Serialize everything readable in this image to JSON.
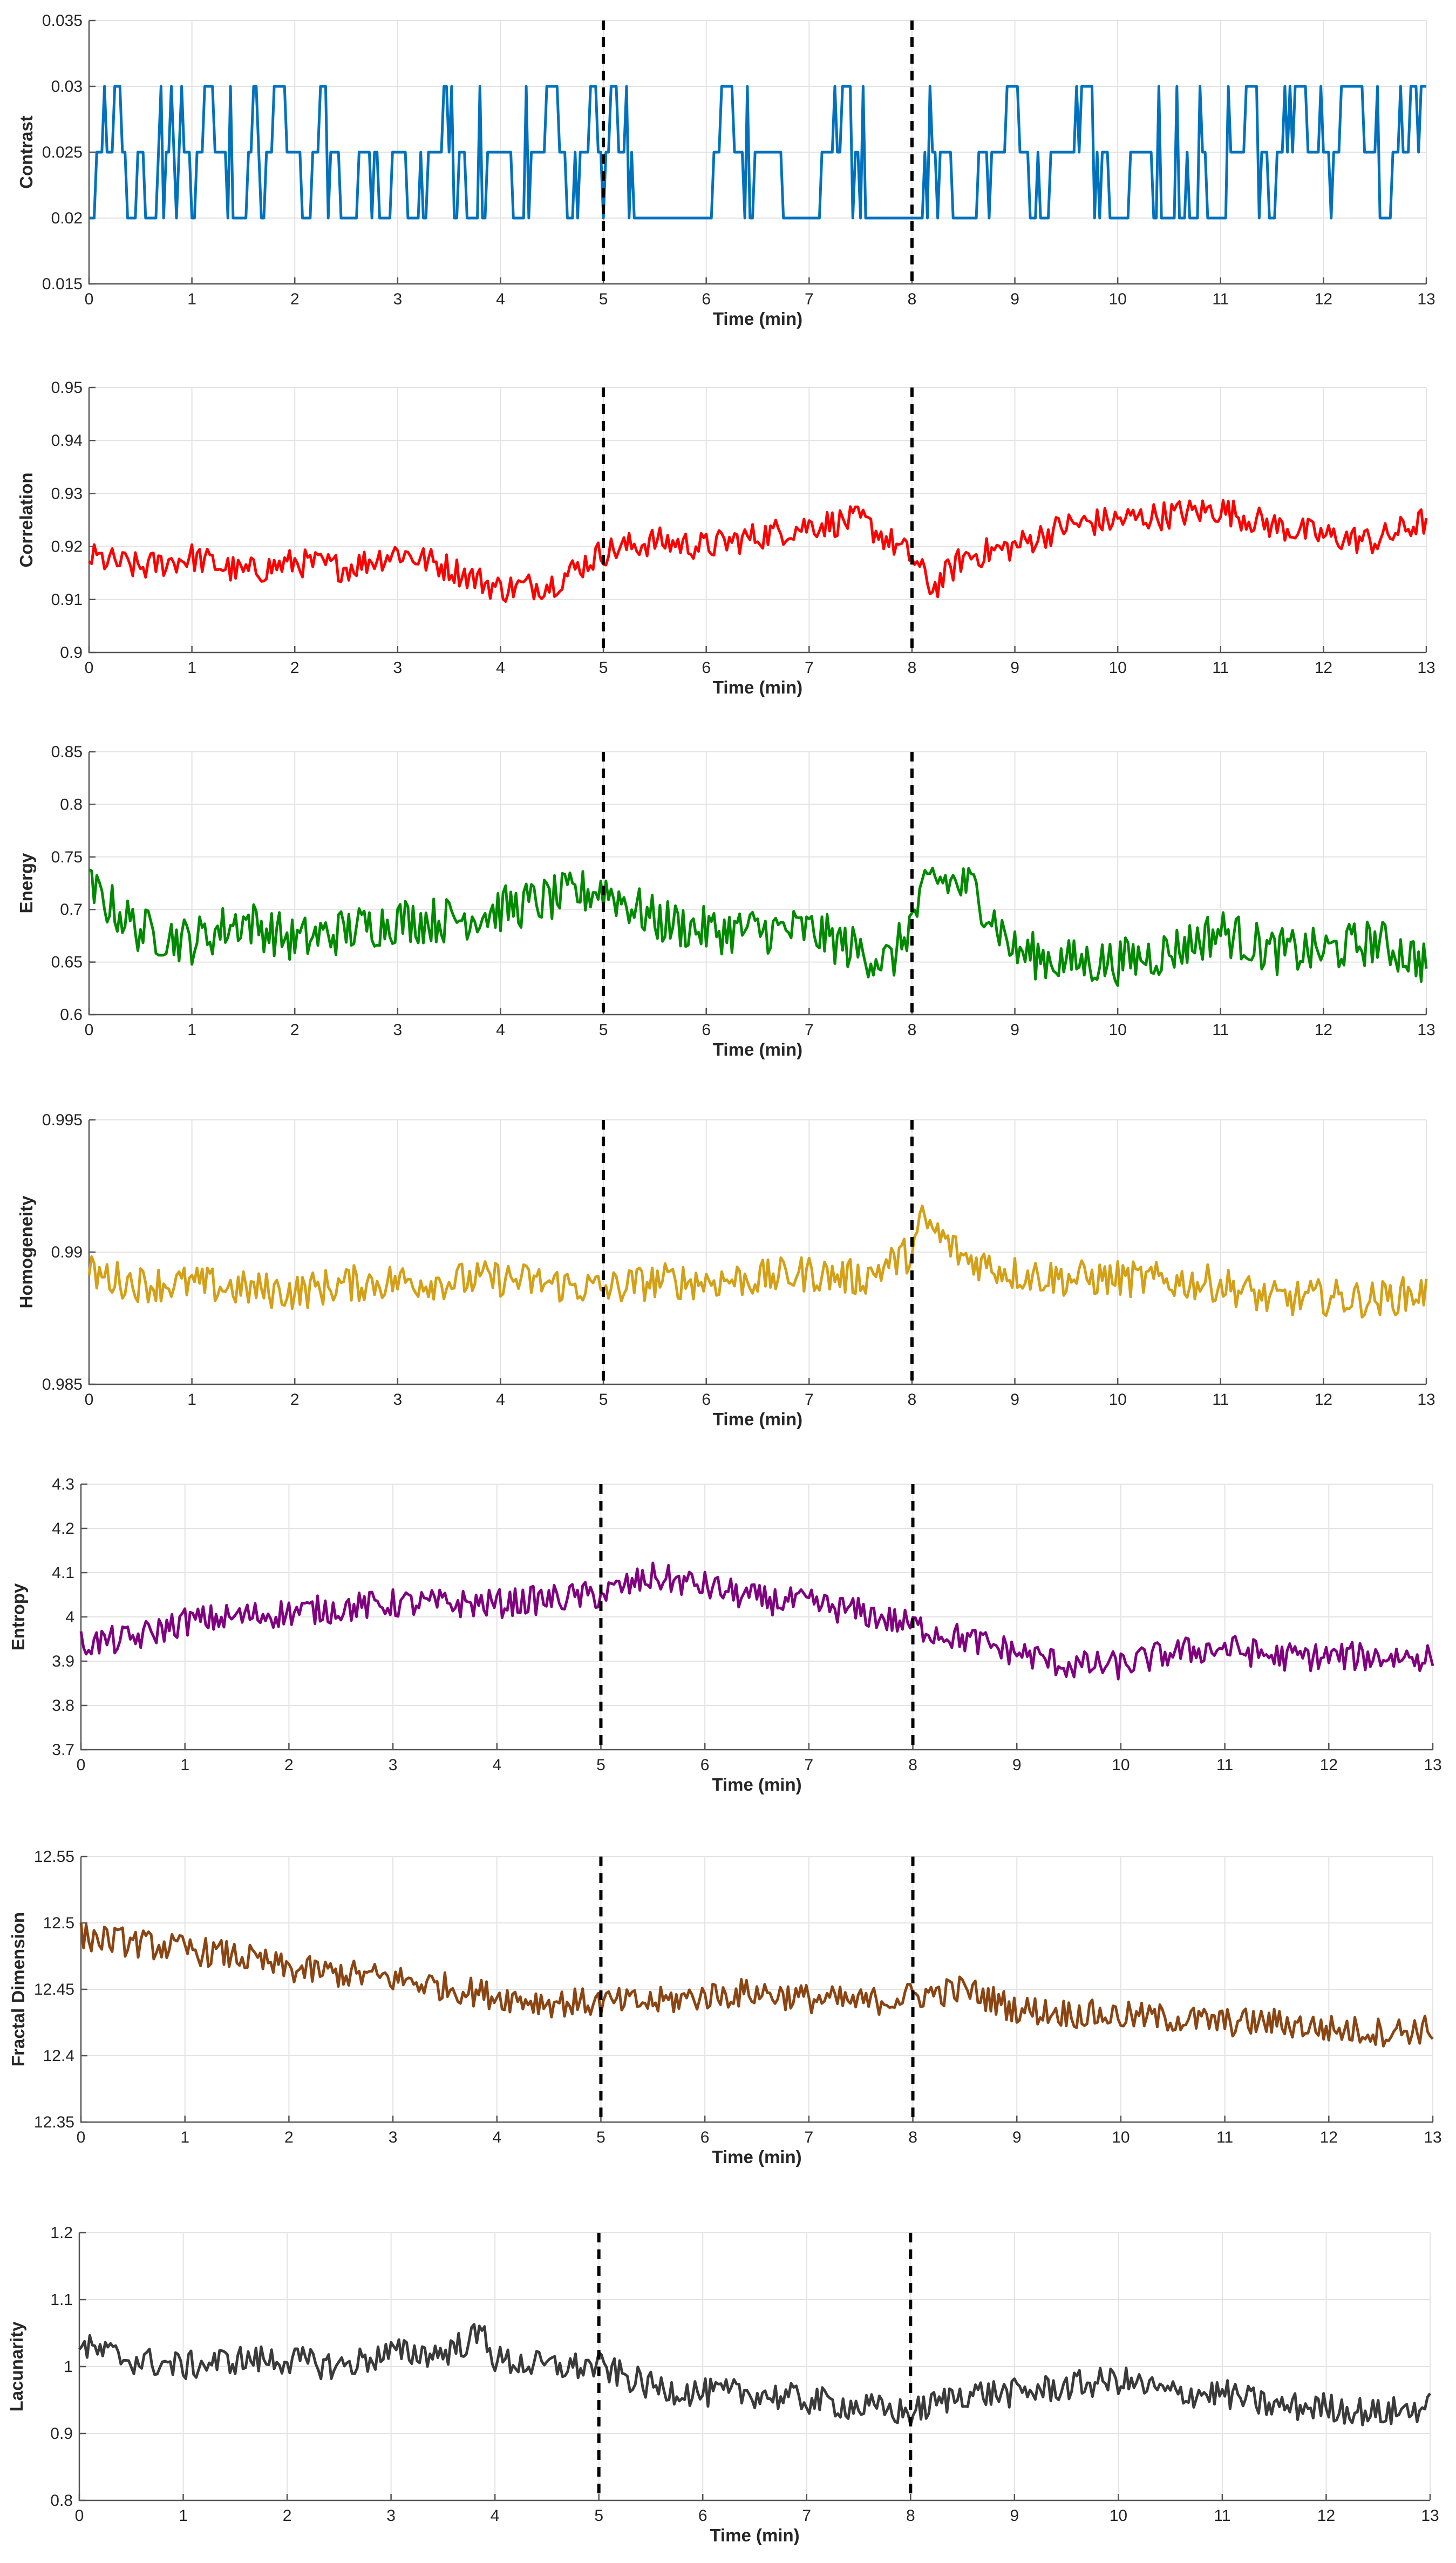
{
  "x_axis": {
    "label": "Time (min)",
    "range": [
      0,
      13
    ],
    "ticks": [
      "0",
      "1",
      "2",
      "3",
      "4",
      "5",
      "6",
      "7",
      "8",
      "9",
      "10",
      "11",
      "12",
      "13"
    ]
  },
  "markers": [
    5,
    8
  ],
  "chart_data": [
    {
      "type": "line",
      "ylabel": "Contrast",
      "xlabel": "Time (min)",
      "xlim": [
        0,
        13
      ],
      "ylim": [
        0.015,
        0.035
      ],
      "yticks": [
        "0.015",
        "0.02",
        "0.025",
        "0.03",
        "0.035"
      ],
      "grid": true,
      "markers": [
        5,
        8
      ],
      "color": "#0072bd",
      "series": [
        {
          "x": [
            0,
            0.1,
            0.2,
            0.25,
            0.3,
            0.4,
            0.5,
            0.6,
            0.65,
            0.7,
            0.75,
            0.8,
            0.85,
            0.9,
            1.0,
            1.1,
            1.5,
            1.6,
            1.7,
            1.8,
            2.0,
            2.1,
            2.3,
            2.5,
            2.7,
            2.9,
            3.0,
            3.2,
            3.5,
            3.7,
            4.0,
            4.2,
            4.5,
            4.7,
            4.9,
            5.0,
            5.1,
            5.3,
            5.6,
            6.0,
            6.2,
            6.4,
            6.5,
            7.0,
            7.4,
            7.5,
            8.0,
            8.3,
            8.5,
            8.8,
            9.0,
            9.2,
            9.7,
            10.0,
            10.2,
            10.5,
            11.0,
            11.3,
            11.5,
            11.7,
            12.0,
            12.3,
            12.6,
            12.9,
            13.0
          ],
          "values": [
            0.02,
            0.025,
            0.025,
            0.03,
            0.03,
            0.02,
            0.025,
            0.02,
            0.02,
            0.03,
            0.025,
            0.03,
            0.02,
            0.03,
            0.02,
            0.03,
            0.02,
            0.03,
            0.02,
            0.03,
            0.025,
            0.02,
            0.03,
            0.02,
            0.025,
            0.02,
            0.025,
            0.02,
            0.03,
            0.02,
            0.025,
            0.02,
            0.03,
            0.02,
            0.03,
            0.02,
            0.03,
            0.02,
            0.02,
            0.02,
            0.03,
            0.02,
            0.025,
            0.02,
            0.03,
            0.02,
            0.02,
            0.025,
            0.02,
            0.025,
            0.03,
            0.02,
            0.03,
            0.02,
            0.025,
            0.02,
            0.02,
            0.03,
            0.02,
            0.03,
            0.025,
            0.03,
            0.02,
            0.03,
            0.03
          ]
        }
      ]
    },
    {
      "type": "line",
      "ylabel": "Correlation",
      "xlabel": "Time (min)",
      "xlim": [
        0,
        13
      ],
      "ylim": [
        0.9,
        0.95
      ],
      "yticks": [
        "0.9",
        "0.91",
        "0.92",
        "0.93",
        "0.94",
        "0.95"
      ],
      "grid": true,
      "markers": [
        5,
        8
      ],
      "color": "#ff0000",
      "series": [
        {
          "x": [
            0,
            0.5,
            1,
            1.5,
            2,
            2.5,
            3,
            3.5,
            4,
            4.5,
            5,
            5.5,
            6,
            6.5,
            7,
            7.5,
            8,
            8.2,
            8.5,
            9,
            9.5,
            10,
            10.5,
            11,
            11.5,
            12,
            12.5,
            13
          ],
          "values": [
            0.918,
            0.916,
            0.918,
            0.915,
            0.917,
            0.916,
            0.919,
            0.916,
            0.912,
            0.913,
            0.919,
            0.921,
            0.92,
            0.922,
            0.924,
            0.925,
            0.918,
            0.912,
            0.918,
            0.92,
            0.924,
            0.925,
            0.926,
            0.927,
            0.924,
            0.922,
            0.921,
            0.925
          ]
        }
      ]
    },
    {
      "type": "line",
      "ylabel": "Energy",
      "xlabel": "Time (min)",
      "xlim": [
        0,
        13
      ],
      "ylim": [
        0.6,
        0.85
      ],
      "yticks": [
        "0.6",
        "0.65",
        "0.7",
        "0.75",
        "0.8",
        "0.85"
      ],
      "grid": true,
      "markers": [
        5,
        8
      ],
      "color": "#008a00",
      "series": [
        {
          "x": [
            0,
            0.5,
            1,
            1.5,
            2,
            2.5,
            3,
            3.5,
            4,
            4.5,
            5,
            5.5,
            6,
            6.5,
            7,
            7.5,
            7.8,
            8,
            8.2,
            8.6,
            9,
            9.5,
            10,
            10.5,
            11,
            11.5,
            12,
            12.5,
            13
          ],
          "values": [
            0.72,
            0.68,
            0.67,
            0.69,
            0.67,
            0.68,
            0.69,
            0.69,
            0.7,
            0.71,
            0.72,
            0.69,
            0.68,
            0.68,
            0.68,
            0.66,
            0.65,
            0.69,
            0.73,
            0.72,
            0.66,
            0.65,
            0.65,
            0.66,
            0.68,
            0.66,
            0.66,
            0.67,
            0.65
          ]
        }
      ]
    },
    {
      "type": "line",
      "ylabel": "Homogeneity",
      "xlabel": "Time (min)",
      "xlim": [
        0,
        13
      ],
      "ylim": [
        0.985,
        0.995
      ],
      "yticks": [
        "0.985",
        "0.99",
        "0.995"
      ],
      "grid": true,
      "markers": [
        5,
        8
      ],
      "color": "#d4a017",
      "series": [
        {
          "x": [
            0,
            0.5,
            1,
            1.5,
            2,
            2.5,
            3,
            3.5,
            4,
            4.5,
            5,
            5.5,
            6,
            6.5,
            7,
            7.5,
            8,
            8.1,
            8.5,
            9,
            9.5,
            10,
            10.5,
            11,
            11.5,
            12,
            12.5,
            13
          ],
          "values": [
            0.9892,
            0.9888,
            0.9888,
            0.9886,
            0.9885,
            0.9888,
            0.9889,
            0.9889,
            0.989,
            0.9888,
            0.9886,
            0.9889,
            0.9889,
            0.989,
            0.9892,
            0.989,
            0.99,
            0.9912,
            0.9898,
            0.9892,
            0.989,
            0.989,
            0.9889,
            0.9888,
            0.9882,
            0.9883,
            0.9882,
            0.9885
          ]
        }
      ]
    },
    {
      "type": "line",
      "ylabel": "Entropy",
      "xlabel": "Time (min)",
      "xlim": [
        0,
        13
      ],
      "ylim": [
        3.7,
        4.3
      ],
      "yticks": [
        "3.7",
        "3.8",
        "3.9",
        "4",
        "4.1",
        "4.2",
        "4.3"
      ],
      "grid": true,
      "markers": [
        5,
        8
      ],
      "color": "#80007f",
      "series": [
        {
          "x": [
            0,
            0.5,
            1,
            1.5,
            2,
            2.5,
            3,
            3.5,
            4,
            4.5,
            5,
            5.5,
            6,
            6.5,
            7,
            7.5,
            8,
            8.5,
            9,
            9.5,
            10,
            10.5,
            11,
            11.5,
            12,
            12.5,
            13
          ],
          "values": [
            3.94,
            3.95,
            3.99,
            4.0,
            4.01,
            4.02,
            4.03,
            4.03,
            4.03,
            4.04,
            4.05,
            4.09,
            4.07,
            4.04,
            4.03,
            4.01,
            3.98,
            3.95,
            3.92,
            3.89,
            3.89,
            3.92,
            3.93,
            3.91,
            3.91,
            3.91,
            3.91
          ]
        }
      ]
    },
    {
      "type": "line",
      "ylabel": "Fractal Dimension",
      "xlabel": "Time (min)",
      "xlim": [
        0,
        13
      ],
      "ylim": [
        12.35,
        12.55
      ],
      "yticks": [
        "12.35",
        "12.4",
        "12.45",
        "12.5",
        "12.55"
      ],
      "grid": true,
      "markers": [
        5,
        8
      ],
      "color": "#8b4513",
      "series": [
        {
          "x": [
            0,
            0.5,
            1,
            1.5,
            2,
            2.5,
            3,
            3.5,
            4,
            4.5,
            5,
            5.5,
            6,
            6.5,
            7,
            7.5,
            8,
            8.5,
            9,
            9.5,
            10,
            10.5,
            11,
            11.5,
            12,
            12.5,
            13
          ],
          "values": [
            12.49,
            12.485,
            12.48,
            12.475,
            12.465,
            12.462,
            12.458,
            12.452,
            12.445,
            12.44,
            12.44,
            12.44,
            12.445,
            12.448,
            12.443,
            12.44,
            12.445,
            12.45,
            12.435,
            12.432,
            12.43,
            12.428,
            12.425,
            12.425,
            12.42,
            12.418,
            12.42
          ]
        }
      ]
    },
    {
      "type": "line",
      "ylabel": "Lacunarity",
      "xlabel": "Time (min)",
      "xlim": [
        0,
        13
      ],
      "ylim": [
        0.8,
        1.2
      ],
      "yticks": [
        "0.8",
        "0.9",
        "1",
        "1.1",
        "1.2"
      ],
      "grid": true,
      "markers": [
        5,
        8
      ],
      "color": "#3a3a3a",
      "series": [
        {
          "x": [
            0,
            0.5,
            1,
            1.5,
            2,
            2.5,
            3,
            3.5,
            3.9,
            4,
            4.5,
            5,
            5.5,
            6,
            6.5,
            7,
            7.5,
            8,
            8.5,
            9,
            9.5,
            10,
            10.5,
            11,
            11.5,
            12,
            12.5,
            13
          ],
          "values": [
            1.03,
            1.01,
            1.0,
            1.01,
            1.01,
            1.0,
            1.02,
            1.02,
            1.05,
            1.01,
            1.0,
            1.0,
            0.97,
            0.96,
            0.96,
            0.95,
            0.94,
            0.93,
            0.96,
            0.96,
            0.97,
            0.98,
            0.96,
            0.96,
            0.94,
            0.94,
            0.93,
            0.94
          ]
        }
      ]
    }
  ]
}
